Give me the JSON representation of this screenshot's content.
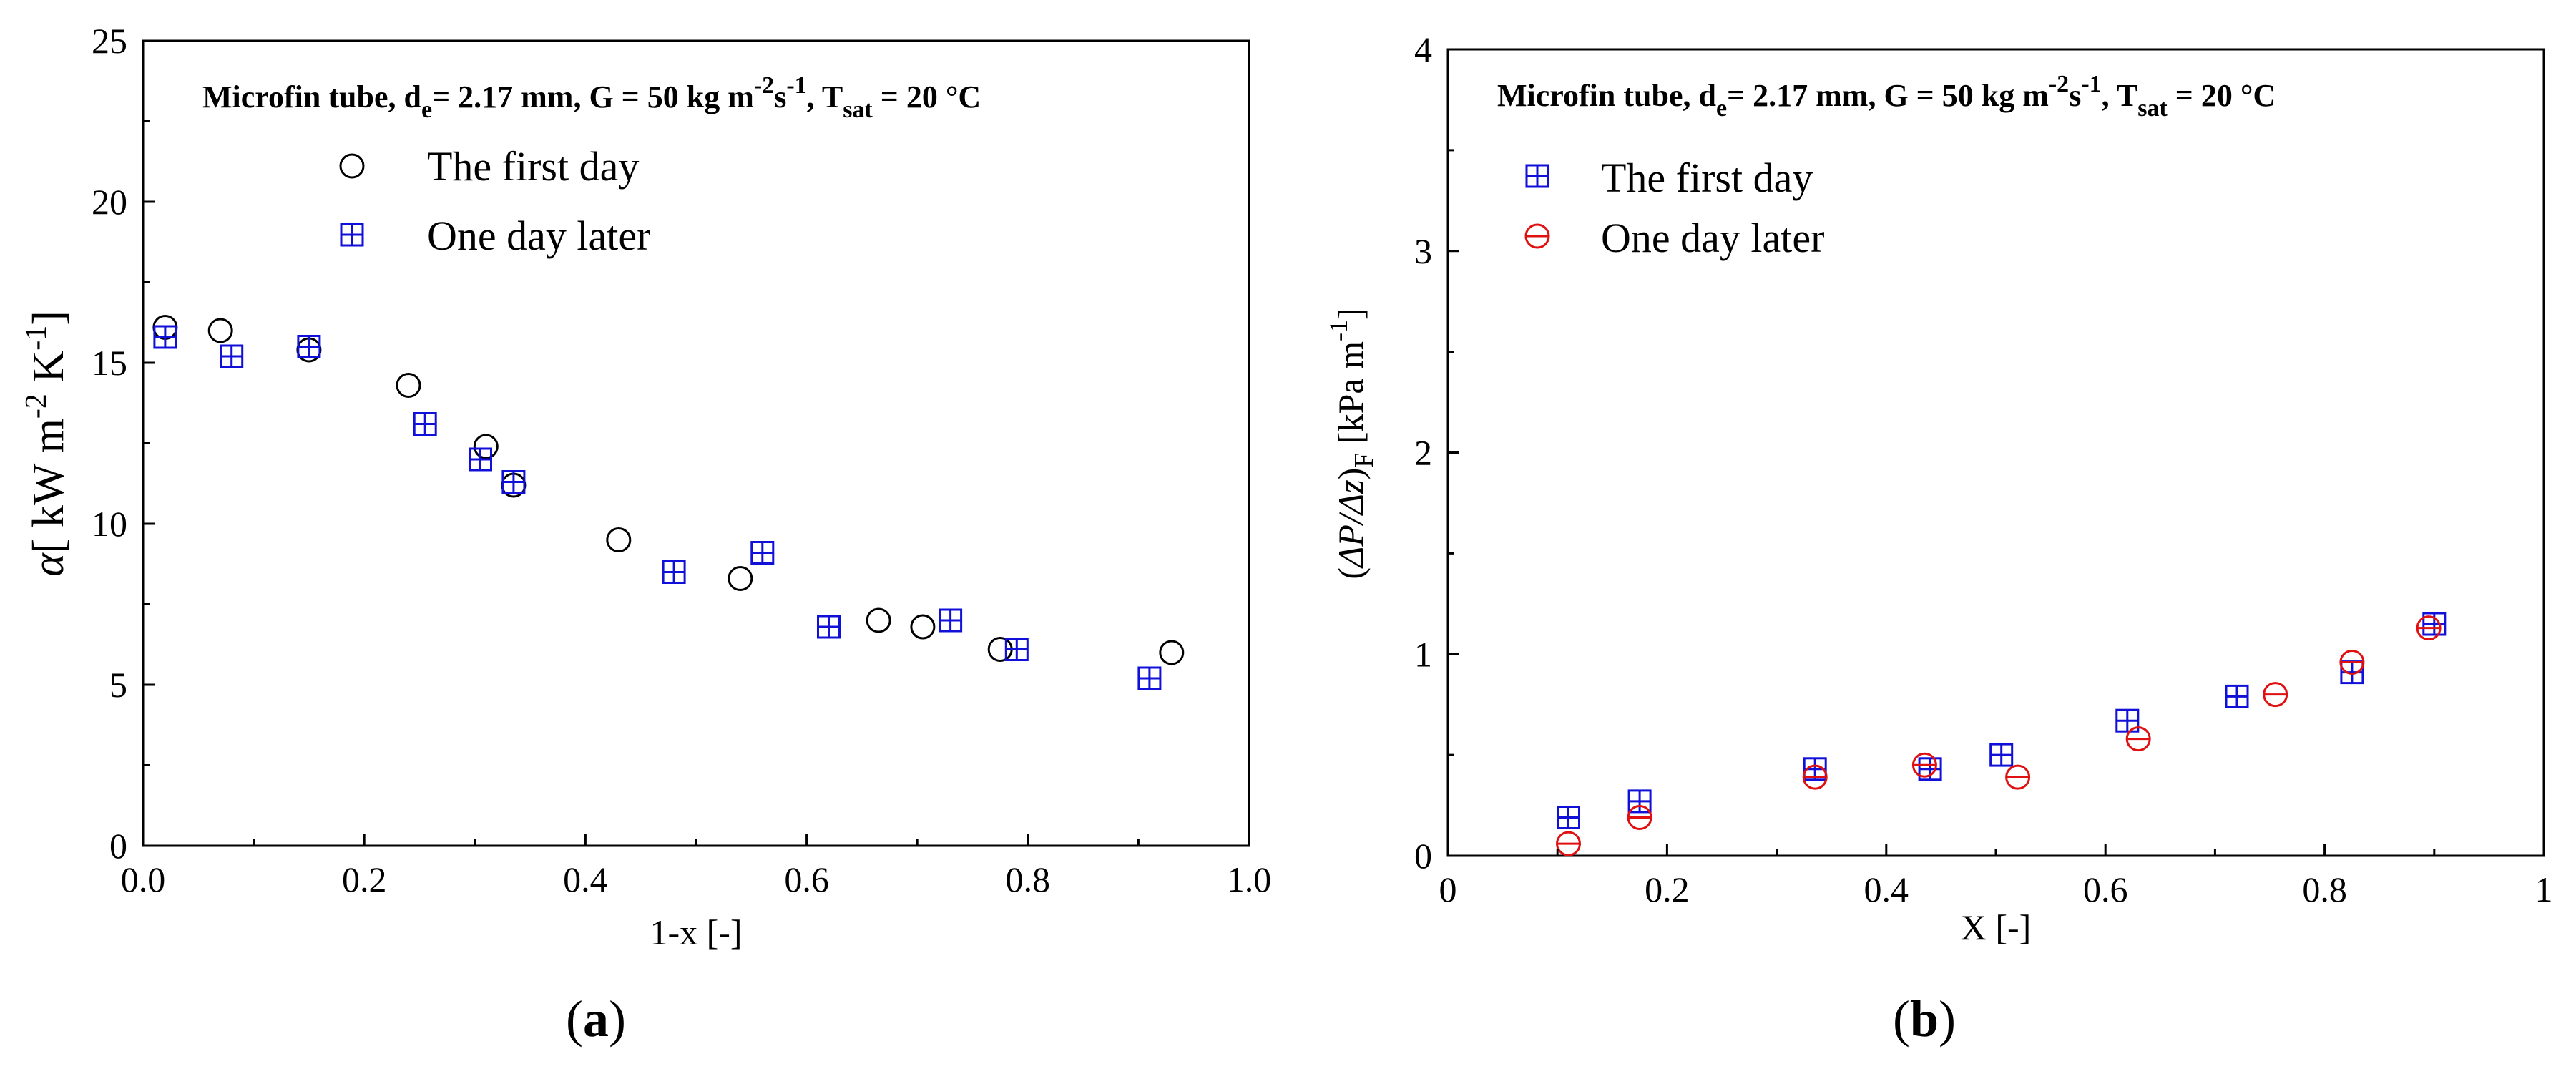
{
  "colors": {
    "black": "#000000",
    "blue": "#1010d8",
    "red": "#e01010"
  },
  "panels": [
    {
      "letter": "a"
    },
    {
      "letter": "b"
    }
  ],
  "chart_data": [
    {
      "type": "scatter",
      "panel_label": "(a)",
      "title": {
        "prefix": "Microfin tube, d",
        "de_sub": "e",
        "de_val": "= 2.17 mm,  G = 50 kg m",
        "g_sup": "-2",
        "s": "s",
        "s_sup": "-1",
        "comma": ", T",
        "t_sub": "sat",
        "t_val": " = 20 °C"
      },
      "xlabel": "1-x [-]",
      "ylabel": {
        "alpha": "α",
        "rest": "[ kW m",
        "sup1": "-2",
        "k": " K",
        "sup2": "-1",
        "close": "]"
      },
      "xlim": [
        0.0,
        1.0
      ],
      "ylim": [
        0,
        25
      ],
      "xticks": [
        {
          "value": 0.0,
          "label": "0.0"
        },
        {
          "value": 0.2,
          "label": "0.2"
        },
        {
          "value": 0.4,
          "label": "0.4"
        },
        {
          "value": 0.6,
          "label": "0.6"
        },
        {
          "value": 0.8,
          "label": "0.8"
        },
        {
          "value": 1.0,
          "label": "1.0"
        }
      ],
      "yticks": [
        {
          "value": 0,
          "label": "0"
        },
        {
          "value": 5,
          "label": "5"
        },
        {
          "value": 10,
          "label": "10"
        },
        {
          "value": 15,
          "label": "15"
        },
        {
          "value": 20,
          "label": "20"
        },
        {
          "value": 25,
          "label": "25"
        }
      ],
      "legend_position": "top-left",
      "series": [
        {
          "name": "The first day",
          "marker": "circle",
          "color": "#000000",
          "x": [
            0.02,
            0.07,
            0.15,
            0.24,
            0.31,
            0.335,
            0.43,
            0.54,
            0.665,
            0.705,
            0.775,
            0.93
          ],
          "y": [
            16.1,
            16.0,
            15.4,
            14.3,
            12.4,
            11.2,
            9.5,
            8.3,
            7.0,
            6.8,
            6.1,
            6.0
          ]
        },
        {
          "name": "One day later",
          "marker": "boxplus",
          "color": "#1010d8",
          "x": [
            0.02,
            0.08,
            0.15,
            0.255,
            0.305,
            0.335,
            0.48,
            0.56,
            0.62,
            0.73,
            0.79,
            0.91
          ],
          "y": [
            15.8,
            15.2,
            15.5,
            13.1,
            12.0,
            11.3,
            8.5,
            9.1,
            6.8,
            7.0,
            6.1,
            5.2
          ]
        }
      ]
    },
    {
      "type": "scatter",
      "panel_label": "(b)",
      "title": {
        "prefix": "Microfin tube, d",
        "de_sub": "e",
        "de_val": "= 2.17 mm,  G = 50 kg m",
        "g_sup": "-2",
        "s": "s",
        "s_sup": "-1",
        "comma": ", T",
        "t_sub": "sat",
        "t_val": " = 20 °C"
      },
      "xlabel": "X [-]",
      "ylabel": {
        "open": "(",
        "dp": "ΔP/Δz",
        "close": ")",
        "sub": "F",
        "rest": " [kPa m",
        "sup": "-1",
        "end": "]"
      },
      "xlim": [
        0,
        1
      ],
      "ylim": [
        0,
        4
      ],
      "xticks": [
        {
          "value": 0,
          "label": "0"
        },
        {
          "value": 0.2,
          "label": "0.2"
        },
        {
          "value": 0.4,
          "label": "0.4"
        },
        {
          "value": 0.6,
          "label": "0.6"
        },
        {
          "value": 0.8,
          "label": "0.8"
        },
        {
          "value": 1,
          "label": "1"
        }
      ],
      "yticks": [
        {
          "value": 0,
          "label": "0"
        },
        {
          "value": 1,
          "label": "1"
        },
        {
          "value": 2,
          "label": "2"
        },
        {
          "value": 3,
          "label": "3"
        },
        {
          "value": 4,
          "label": "4"
        }
      ],
      "legend_position": "top-left",
      "series": [
        {
          "name": "The first day",
          "marker": "boxplus",
          "color": "#1010d8",
          "x": [
            0.11,
            0.175,
            0.335,
            0.44,
            0.505,
            0.62,
            0.72,
            0.825,
            0.9
          ],
          "y": [
            0.19,
            0.27,
            0.43,
            0.43,
            0.5,
            0.67,
            0.79,
            0.91,
            1.15
          ]
        },
        {
          "name": "One day later",
          "marker": "circle-minus",
          "color": "#e01010",
          "x": [
            0.11,
            0.175,
            0.335,
            0.435,
            0.52,
            0.63,
            0.755,
            0.825,
            0.895
          ],
          "y": [
            0.06,
            0.19,
            0.39,
            0.45,
            0.39,
            0.58,
            0.8,
            0.96,
            1.13
          ]
        }
      ]
    }
  ]
}
